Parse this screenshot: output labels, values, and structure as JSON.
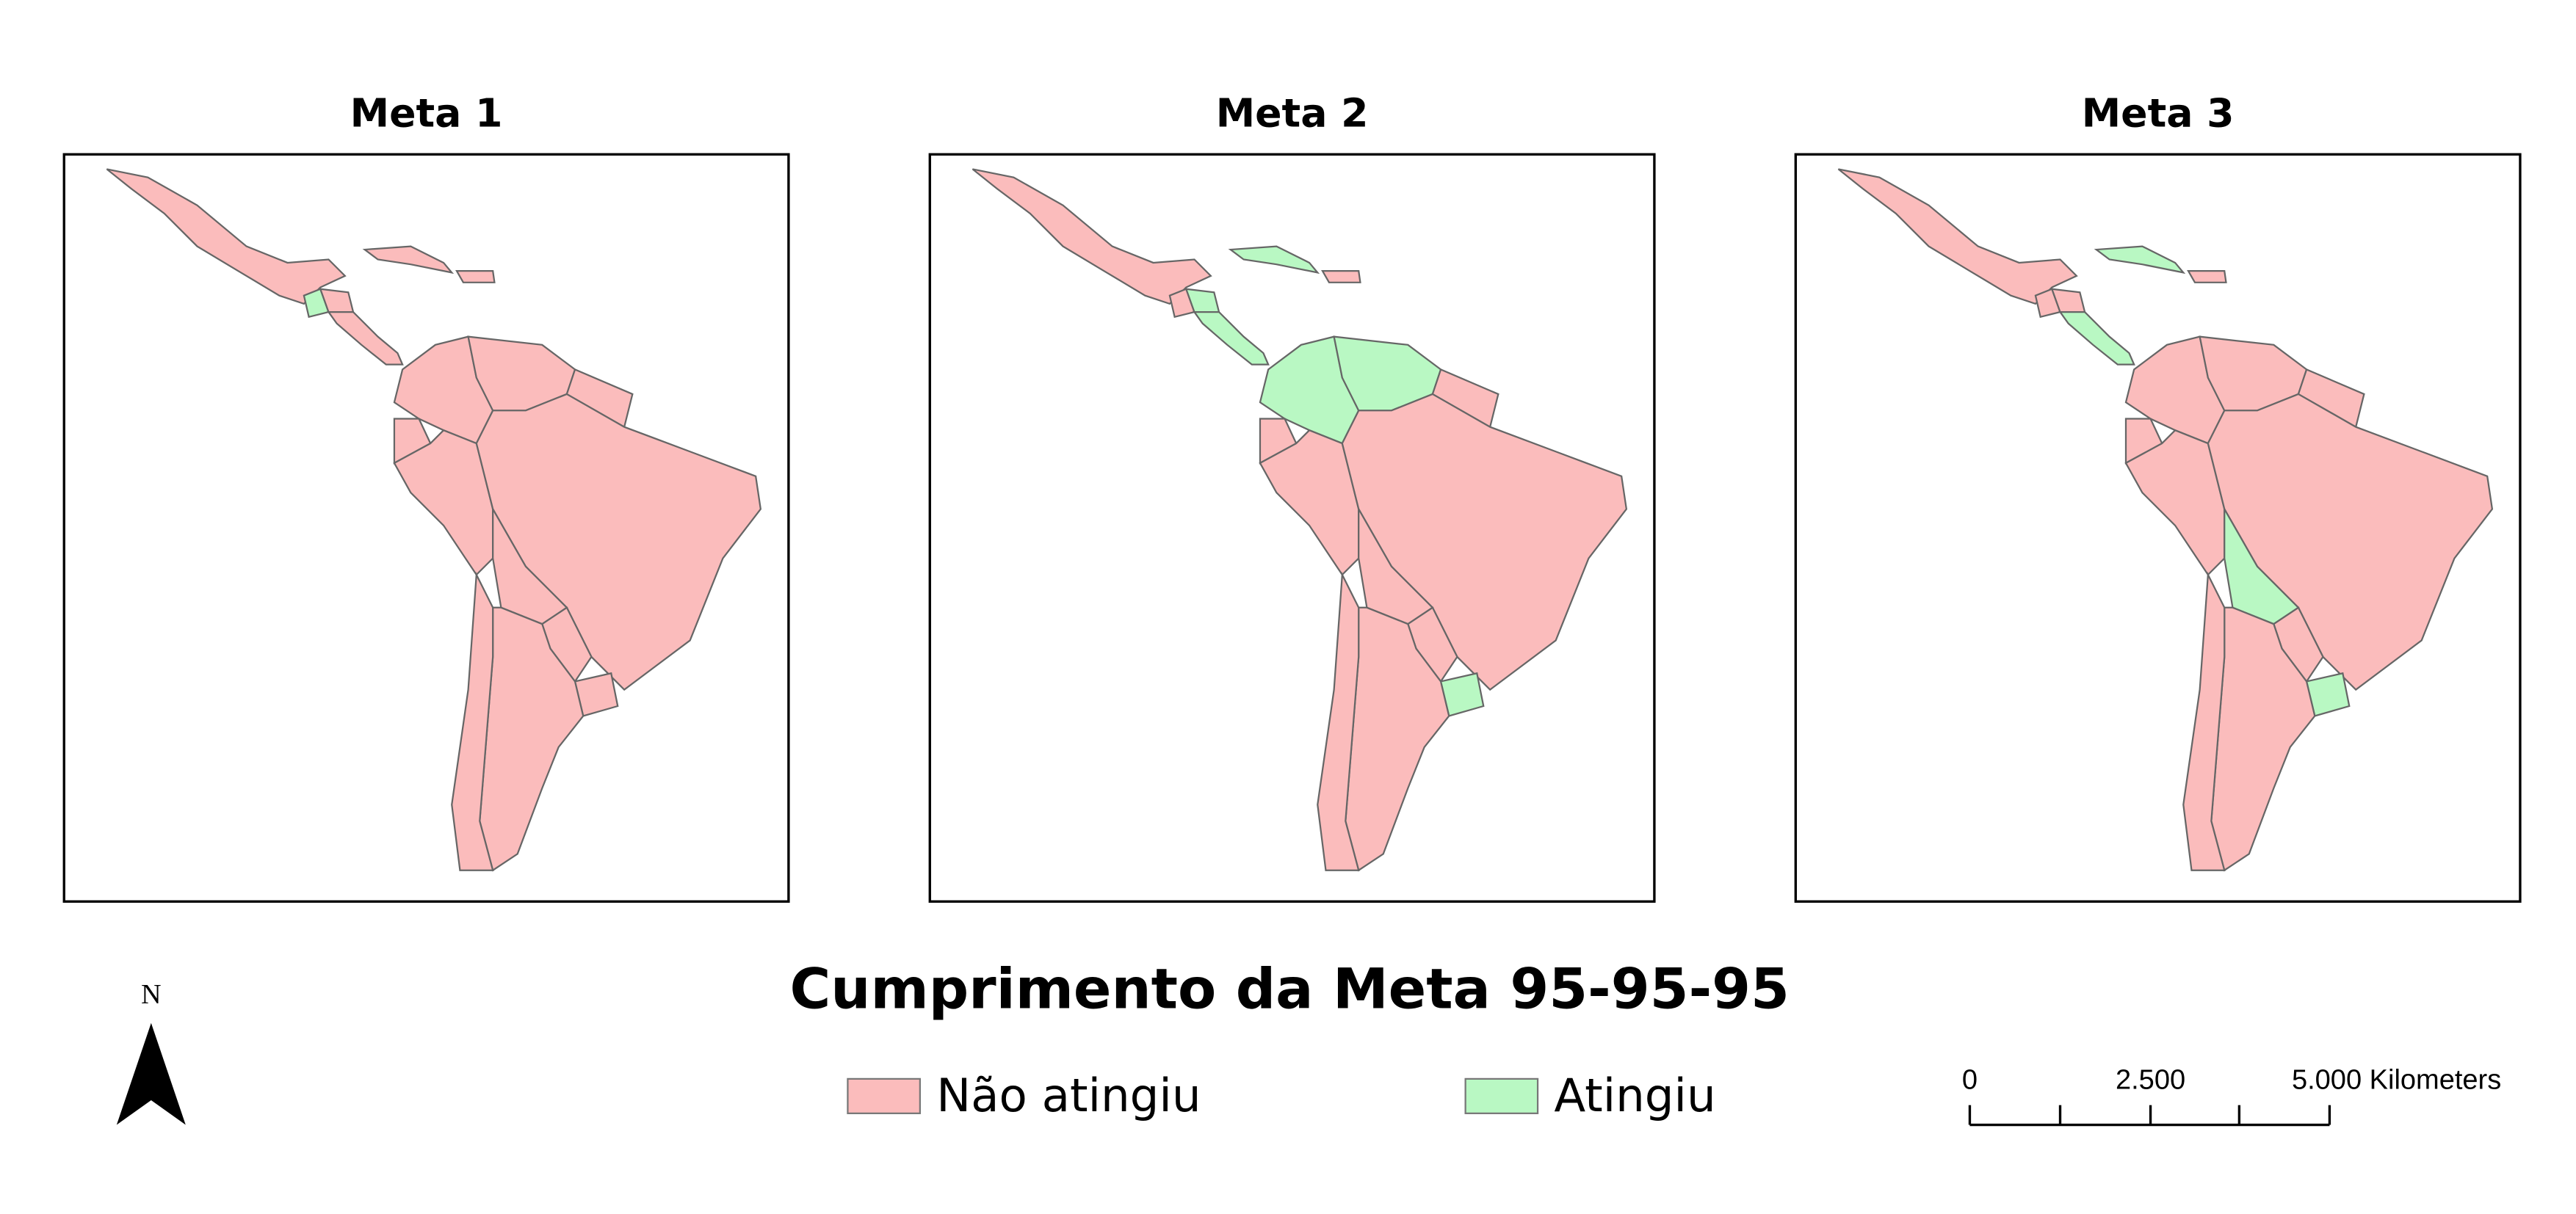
{
  "panels": [
    {
      "title": "Meta 1"
    },
    {
      "title": "Meta 2"
    },
    {
      "title": "Meta 3"
    }
  ],
  "title": "Cumprimento da Meta 95-95-95",
  "legend": [
    {
      "label": "Não atingiu",
      "color": "#fbbcbc"
    },
    {
      "label": "Atingiu",
      "color": "#b9f8c3"
    }
  ],
  "north": "N",
  "scale_bar": {
    "labels": [
      "0",
      "2.500",
      "5.000 Kilometers"
    ]
  }
}
